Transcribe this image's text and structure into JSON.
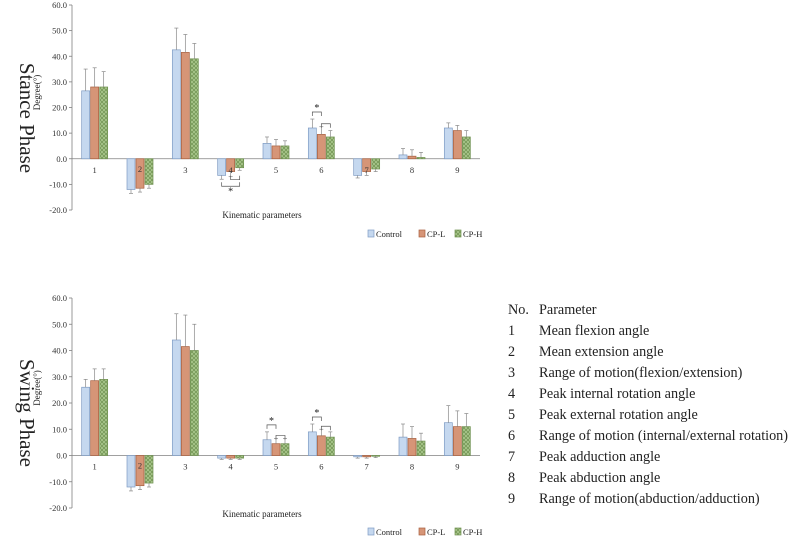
{
  "colors": {
    "control": "#c5d8ef",
    "control_edge": "#7f9cc4",
    "cpl": "#d69577",
    "cpl_edge": "#a8603f",
    "cph": "#a9c78c",
    "cph_edge": "#6f9150",
    "axis": "#808080",
    "err": "#888888"
  },
  "legend": [
    "Control",
    "CP-L",
    "CP-H"
  ],
  "table": {
    "header_no": "No.",
    "header_param": "Parameter",
    "rows": [
      {
        "no": "1",
        "name": "Mean flexion angle"
      },
      {
        "no": "2",
        "name": "Mean extension angle"
      },
      {
        "no": "3",
        "name": "Range of motion(flexion/extension)"
      },
      {
        "no": "4",
        "name": "Peak internal rotation angle"
      },
      {
        "no": "5",
        "name": "Peak external rotation angle"
      },
      {
        "no": "6",
        "name": "Range of motion (internal/external rotation)"
      },
      {
        "no": "7",
        "name": "Peak adduction angle"
      },
      {
        "no": "8",
        "name": "Peak abduction angle"
      },
      {
        "no": "9",
        "name": "Range of motion(abduction/adduction)"
      }
    ]
  },
  "chart_data": [
    {
      "type": "bar",
      "title": "",
      "panel_label": "Stance Phase",
      "xlabel": "Kinematic parameters",
      "ylabel": "Degree(°)",
      "ylim": [
        -20,
        60
      ],
      "yticks": [
        "-20.0",
        "-10.0",
        "0.0",
        "10.0",
        "20.0",
        "30.0",
        "40.0",
        "50.0",
        "60.0"
      ],
      "categories": [
        "1",
        "2",
        "3",
        "4",
        "5",
        "6",
        "7",
        "8",
        "9"
      ],
      "grid": false,
      "legend_position": "bottom-right",
      "series": [
        {
          "name": "Control",
          "values": [
            26.5,
            -12,
            42.5,
            -6.5,
            6,
            12,
            -6.5,
            1.5,
            12
          ],
          "errors": [
            8.5,
            1.5,
            8.5,
            1.5,
            2.5,
            3.5,
            1,
            2.5,
            2
          ]
        },
        {
          "name": "CP-L",
          "values": [
            28,
            -11.5,
            41.5,
            -5,
            5,
            9.5,
            -5,
            1,
            11
          ],
          "errors": [
            7.5,
            1.5,
            7,
            2,
            2.5,
            3,
            1.5,
            2.5,
            2
          ]
        },
        {
          "name": "CP-H",
          "values": [
            28,
            -10,
            39,
            -3.5,
            5,
            8.5,
            -4,
            0.5,
            8.5
          ],
          "errors": [
            6,
            1.5,
            6,
            1,
            2,
            2.5,
            1,
            2,
            2.5
          ]
        }
      ],
      "annotations": [
        {
          "category": "6",
          "from": "Control",
          "to": "CP-L",
          "text": "*",
          "pos": "above"
        },
        {
          "category": "6",
          "from": "CP-L",
          "to": "CP-H",
          "text": "",
          "pos": "above"
        },
        {
          "category": "4",
          "from": "Control",
          "to": "CP-H",
          "text": "*",
          "pos": "below"
        },
        {
          "category": "4",
          "from": "CP-L",
          "to": "CP-H",
          "text": "",
          "pos": "below"
        }
      ]
    },
    {
      "type": "bar",
      "title": "",
      "panel_label": "Swing Phase",
      "xlabel": "Kinematic parameters",
      "ylabel": "Degree(°)",
      "ylim": [
        -20,
        60
      ],
      "yticks": [
        "-20.0",
        "-10.0",
        "0.0",
        "10.0",
        "20.0",
        "30.0",
        "40.0",
        "50.0",
        "60.0"
      ],
      "categories": [
        "1",
        "2",
        "3",
        "4",
        "5",
        "6",
        "7",
        "8",
        "9"
      ],
      "grid": false,
      "legend_position": "bottom-right",
      "series": [
        {
          "name": "Control",
          "values": [
            26,
            -12,
            44,
            -1,
            6,
            9,
            -0.5,
            7,
            12.5
          ],
          "errors": [
            3,
            1.5,
            10,
            0.5,
            3,
            3,
            0.5,
            5,
            6.5
          ]
        },
        {
          "name": "CP-L",
          "values": [
            28.5,
            -11.5,
            41.5,
            -1,
            4.5,
            7.5,
            -0.5,
            6.5,
            11
          ],
          "errors": [
            4.5,
            1.5,
            12,
            0.5,
            2,
            2.5,
            0.5,
            4.5,
            6
          ]
        },
        {
          "name": "CP-H",
          "values": [
            29,
            -10.5,
            40,
            -1,
            4.5,
            7,
            -0.3,
            5.5,
            11
          ],
          "errors": [
            4,
            1.5,
            10,
            0.5,
            2,
            2,
            0.5,
            3,
            5
          ]
        }
      ],
      "annotations": [
        {
          "category": "5",
          "from": "Control",
          "to": "CP-L",
          "text": "*",
          "pos": "above"
        },
        {
          "category": "5",
          "from": "CP-L",
          "to": "CP-H",
          "text": "",
          "pos": "above"
        },
        {
          "category": "6",
          "from": "Control",
          "to": "CP-L",
          "text": "*",
          "pos": "above"
        },
        {
          "category": "6",
          "from": "CP-L",
          "to": "CP-H",
          "text": "",
          "pos": "above"
        }
      ]
    }
  ]
}
